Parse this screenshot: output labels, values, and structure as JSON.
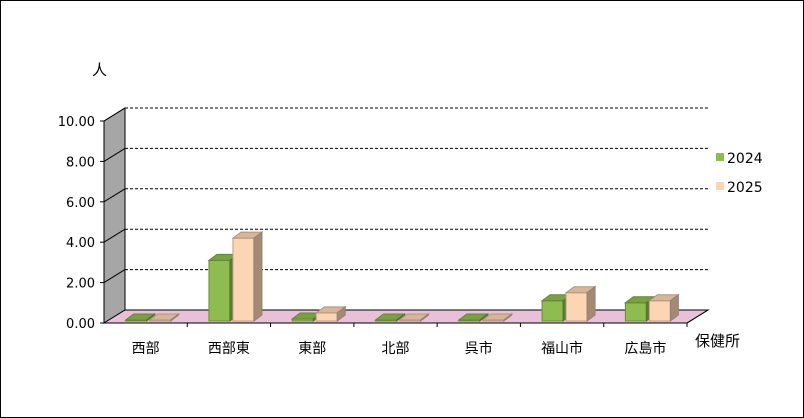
{
  "chart_data": {
    "type": "bar",
    "categories": [
      "西部",
      "西部東",
      "東部",
      "北部",
      "呉市",
      "福山市",
      "広島市"
    ],
    "series": [
      {
        "name": "2024",
        "values": [
          0.0,
          3.1,
          0.2,
          0.1,
          0.0,
          1.1,
          1.0
        ],
        "color": "#8fbc50"
      },
      {
        "name": "2025",
        "values": [
          0.0,
          4.2,
          0.5,
          0.0,
          0.0,
          1.5,
          1.1
        ],
        "color": "#fcd5b5"
      }
    ],
    "ylabel": "人",
    "xlabel": "保健所",
    "ylim": [
      0,
      10
    ],
    "yticks": [
      "0.00",
      "2.00",
      "4.00",
      "6.00",
      "8.00",
      "10.00"
    ],
    "grid": true,
    "legend_position": "right",
    "floor_color": "#e8c1d9",
    "wall_color": "#a6a6a6"
  }
}
